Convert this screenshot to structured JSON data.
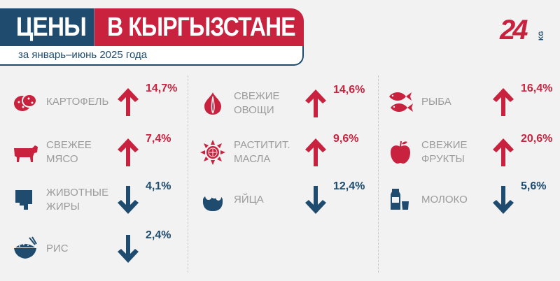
{
  "header": {
    "title_left": "ЦЕНЫ",
    "title_right": "В КЫРГЫЗСТАНЕ",
    "subtitle": "за январь–июнь 2025 года",
    "logo_text_main": "24",
    "logo_text_small": "KG"
  },
  "colors": {
    "up": "#c8223f",
    "down": "#1e4b6e",
    "label": "#9b9b9b",
    "navy": "#1e4b6e",
    "red": "#c8223f"
  },
  "items": [
    {
      "label_line1": "КАРТОФЕЛЬ",
      "label_line2": "",
      "value": "14,7%",
      "direction": "up",
      "icon": "potato-icon"
    },
    {
      "label_line1": "СВЕЖЕЕ",
      "label_line2": "МЯСО",
      "value": "7,4%",
      "direction": "up",
      "icon": "cow-icon"
    },
    {
      "label_line1": "ЖИВОТНЫЕ",
      "label_line2": "ЖИРЫ",
      "value": "4,1%",
      "direction": "down",
      "icon": "butter-icon"
    },
    {
      "label_line1": "РИС",
      "label_line2": "",
      "value": "2,4%",
      "direction": "down",
      "icon": "rice-bowl-icon"
    },
    {
      "label_line1": "СВЕЖИЕ",
      "label_line2": "ОВОЩИ",
      "value": "14,6%",
      "direction": "up",
      "icon": "onion-icon"
    },
    {
      "label_line1": "РАСТИТИТ.",
      "label_line2": "МАСЛА",
      "value": "9,6%",
      "direction": "up",
      "icon": "sunflower-icon"
    },
    {
      "label_line1": "ЯЙЦА",
      "label_line2": "",
      "value": "12,4%",
      "direction": "down",
      "icon": "eggs-basket-icon"
    },
    {
      "label_line1": "РЫБА",
      "label_line2": "",
      "value": "16,4%",
      "direction": "up",
      "icon": "fish-icon"
    },
    {
      "label_line1": "СВЕЖИЕ",
      "label_line2": "ФРУКТЫ",
      "value": "20,6%",
      "direction": "up",
      "icon": "apple-icon"
    },
    {
      "label_line1": "МОЛОКО",
      "label_line2": "",
      "value": "5,6%",
      "direction": "down",
      "icon": "milk-icon"
    }
  ]
}
